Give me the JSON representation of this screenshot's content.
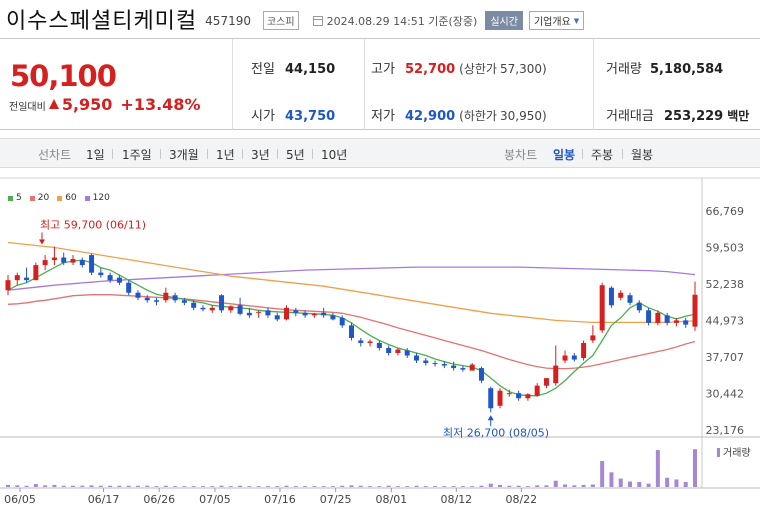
{
  "header": {
    "title": "이수스페셜티케미컬",
    "code": "457190",
    "market": "코스피",
    "datetime": "2024.08.29 14:51 기준(장중)",
    "realtime_label": "실시간",
    "info_label": "기업개요"
  },
  "quote": {
    "price": "50,100",
    "change_label": "전일대비",
    "change": "5,950",
    "change_pct": "+13.48%",
    "prev_close_label": "전일",
    "prev_close": "44,150",
    "high_label": "고가",
    "high": "52,700",
    "upper_limit_label": "(상한가",
    "upper_limit": "57,300)",
    "volume_label": "거래량",
    "volume": "5,180,584",
    "open_label": "시가",
    "open": "43,750",
    "low_label": "저가",
    "low": "42,900",
    "lower_limit_label": "(하한가",
    "lower_limit": "30,950)",
    "amount_label": "거래대금",
    "amount": "253,229",
    "amount_unit": "백만"
  },
  "periods": {
    "line_label": "선차트",
    "line": [
      "1일",
      "1주일",
      "3개월",
      "1년",
      "3년",
      "5년",
      "10년"
    ],
    "candle_label": "봉차트",
    "candle": [
      "일봉",
      "주봉",
      "월봉"
    ],
    "active": "일봉"
  },
  "colors": {
    "up": "#d61f1f",
    "down": "#1f56c8",
    "ma5": "#4caf50",
    "ma20": "#e57373",
    "ma60": "#f0a04b",
    "ma120": "#a57ad8",
    "volume": "#a987cf"
  },
  "chart_data": {
    "type": "candlestick",
    "legend": [
      "5",
      "20",
      "60",
      "120"
    ],
    "y_ticks": [
      "66,769",
      "59,503",
      "52,238",
      "44,973",
      "37,707",
      "30,442",
      "23,176"
    ],
    "ylim": [
      23176,
      66769
    ],
    "x_ticks": [
      "06/05",
      "06/17",
      "06/26",
      "07/05",
      "07/16",
      "07/25",
      "08/01",
      "08/12",
      "08/22"
    ],
    "annotations": {
      "high": "최고 59,700 (06/11)",
      "low": "최저 26,700 (08/05)"
    },
    "volume_label": "거래량",
    "candles": [
      {
        "o": 51000,
        "h": 54000,
        "l": 50000,
        "c": 53000
      },
      {
        "o": 53000,
        "h": 54500,
        "l": 52000,
        "c": 54000
      },
      {
        "o": 53500,
        "h": 55500,
        "l": 52500,
        "c": 53000
      },
      {
        "o": 53000,
        "h": 56500,
        "l": 53000,
        "c": 56000
      },
      {
        "o": 56000,
        "h": 58000,
        "l": 55000,
        "c": 57000
      },
      {
        "o": 57000,
        "h": 59700,
        "l": 56000,
        "c": 57500
      },
      {
        "o": 57500,
        "h": 58500,
        "l": 56000,
        "c": 56500
      },
      {
        "o": 56500,
        "h": 58000,
        "l": 56000,
        "c": 57200
      },
      {
        "o": 57000,
        "h": 57500,
        "l": 55500,
        "c": 56000
      },
      {
        "o": 58000,
        "h": 58300,
        "l": 54000,
        "c": 54500
      },
      {
        "o": 54500,
        "h": 55500,
        "l": 53500,
        "c": 54000
      },
      {
        "o": 54000,
        "h": 54500,
        "l": 52500,
        "c": 53000
      },
      {
        "o": 53500,
        "h": 54000,
        "l": 52000,
        "c": 52500
      },
      {
        "o": 52500,
        "h": 53000,
        "l": 50000,
        "c": 50500
      },
      {
        "o": 50500,
        "h": 51000,
        "l": 49000,
        "c": 49500
      },
      {
        "o": 49500,
        "h": 50000,
        "l": 48500,
        "c": 49000
      },
      {
        "o": 49000,
        "h": 49500,
        "l": 48000,
        "c": 48700
      },
      {
        "o": 49000,
        "h": 51500,
        "l": 48500,
        "c": 50500
      },
      {
        "o": 50000,
        "h": 50500,
        "l": 48500,
        "c": 49000
      },
      {
        "o": 49000,
        "h": 49500,
        "l": 48000,
        "c": 48500
      },
      {
        "o": 48500,
        "h": 49000,
        "l": 47000,
        "c": 47500
      },
      {
        "o": 47500,
        "h": 48000,
        "l": 46800,
        "c": 47200
      },
      {
        "o": 47000,
        "h": 48000,
        "l": 46500,
        "c": 47500
      },
      {
        "o": 50000,
        "h": 50200,
        "l": 46500,
        "c": 47000
      },
      {
        "o": 47000,
        "h": 48000,
        "l": 46500,
        "c": 47800
      },
      {
        "o": 48000,
        "h": 49500,
        "l": 46000,
        "c": 46300
      },
      {
        "o": 46500,
        "h": 47500,
        "l": 45500,
        "c": 46000
      },
      {
        "o": 46500,
        "h": 47000,
        "l": 45500,
        "c": 46700
      },
      {
        "o": 47000,
        "h": 47500,
        "l": 45500,
        "c": 46000
      },
      {
        "o": 46000,
        "h": 46500,
        "l": 44800,
        "c": 45200
      },
      {
        "o": 45200,
        "h": 48000,
        "l": 45000,
        "c": 47500
      },
      {
        "o": 47000,
        "h": 47500,
        "l": 45800,
        "c": 46500
      },
      {
        "o": 46500,
        "h": 47000,
        "l": 45500,
        "c": 46000
      },
      {
        "o": 46000,
        "h": 46500,
        "l": 45500,
        "c": 46300
      },
      {
        "o": 46500,
        "h": 47500,
        "l": 45500,
        "c": 46000
      },
      {
        "o": 46000,
        "h": 46500,
        "l": 45000,
        "c": 45200
      },
      {
        "o": 45500,
        "h": 46000,
        "l": 43500,
        "c": 44000
      },
      {
        "o": 44000,
        "h": 44500,
        "l": 41000,
        "c": 41500
      },
      {
        "o": 41000,
        "h": 41500,
        "l": 39800,
        "c": 40500
      },
      {
        "o": 40500,
        "h": 41200,
        "l": 39800,
        "c": 40800
      },
      {
        "o": 40500,
        "h": 41000,
        "l": 39000,
        "c": 39500
      },
      {
        "o": 39500,
        "h": 40000,
        "l": 38000,
        "c": 38500
      },
      {
        "o": 38500,
        "h": 39500,
        "l": 38000,
        "c": 39200
      },
      {
        "o": 39000,
        "h": 39500,
        "l": 37500,
        "c": 38000
      },
      {
        "o": 38000,
        "h": 38500,
        "l": 36500,
        "c": 37000
      },
      {
        "o": 37000,
        "h": 37500,
        "l": 36000,
        "c": 36500
      },
      {
        "o": 36500,
        "h": 37000,
        "l": 35800,
        "c": 36300
      },
      {
        "o": 36300,
        "h": 36800,
        "l": 35500,
        "c": 36000
      },
      {
        "o": 36000,
        "h": 36800,
        "l": 35000,
        "c": 35500
      },
      {
        "o": 35500,
        "h": 36000,
        "l": 34800,
        "c": 35200
      },
      {
        "o": 35000,
        "h": 36500,
        "l": 35000,
        "c": 36200
      },
      {
        "o": 35500,
        "h": 35800,
        "l": 32500,
        "c": 33000
      },
      {
        "o": 31500,
        "h": 31800,
        "l": 26700,
        "c": 27500
      },
      {
        "o": 28000,
        "h": 31500,
        "l": 27500,
        "c": 31000
      },
      {
        "o": 30500,
        "h": 31200,
        "l": 29800,
        "c": 30500
      },
      {
        "o": 30500,
        "h": 31000,
        "l": 29000,
        "c": 29500
      },
      {
        "o": 29500,
        "h": 30500,
        "l": 29000,
        "c": 30300
      },
      {
        "o": 30000,
        "h": 32500,
        "l": 29800,
        "c": 32000
      },
      {
        "o": 32000,
        "h": 33500,
        "l": 31500,
        "c": 33500
      },
      {
        "o": 32500,
        "h": 40000,
        "l": 32000,
        "c": 36000
      },
      {
        "o": 37000,
        "h": 39000,
        "l": 36500,
        "c": 38000
      },
      {
        "o": 38000,
        "h": 38500,
        "l": 36800,
        "c": 37200
      },
      {
        "o": 37500,
        "h": 41000,
        "l": 37000,
        "c": 40500
      },
      {
        "o": 41000,
        "h": 44000,
        "l": 40500,
        "c": 42000
      },
      {
        "o": 43000,
        "h": 52500,
        "l": 42500,
        "c": 52000
      },
      {
        "o": 51500,
        "h": 51800,
        "l": 47500,
        "c": 48000
      },
      {
        "o": 49500,
        "h": 51000,
        "l": 49000,
        "c": 50500
      },
      {
        "o": 50000,
        "h": 50500,
        "l": 48000,
        "c": 48500
      },
      {
        "o": 48500,
        "h": 49000,
        "l": 46500,
        "c": 47000
      },
      {
        "o": 47000,
        "h": 47500,
        "l": 44000,
        "c": 44500
      },
      {
        "o": 44500,
        "h": 47000,
        "l": 44000,
        "c": 46500
      },
      {
        "o": 46000,
        "h": 46500,
        "l": 44000,
        "c": 44500
      },
      {
        "o": 44500,
        "h": 45500,
        "l": 43800,
        "c": 45000
      },
      {
        "o": 45000,
        "h": 45500,
        "l": 43500,
        "c": 44150
      },
      {
        "o": 43750,
        "h": 52700,
        "l": 42900,
        "c": 50100
      }
    ],
    "volume": [
      0.05,
      0.04,
      0.03,
      0.07,
      0.04,
      0.05,
      0.03,
      0.03,
      0.03,
      0.04,
      0.03,
      0.03,
      0.03,
      0.03,
      0.03,
      0.03,
      0.02,
      0.03,
      0.02,
      0.02,
      0.02,
      0.02,
      0.02,
      0.03,
      0.02,
      0.03,
      0.02,
      0.02,
      0.02,
      0.02,
      0.03,
      0.02,
      0.02,
      0.02,
      0.02,
      0.02,
      0.03,
      0.04,
      0.03,
      0.02,
      0.02,
      0.03,
      0.02,
      0.02,
      0.03,
      0.02,
      0.02,
      0.02,
      0.02,
      0.02,
      0.02,
      0.03,
      0.08,
      0.05,
      0.03,
      0.03,
      0.02,
      0.04,
      0.04,
      0.15,
      0.06,
      0.04,
      0.05,
      0.06,
      0.62,
      0.35,
      0.2,
      0.13,
      0.12,
      0.08,
      0.88,
      0.22,
      0.18,
      0.12,
      0.9
    ],
    "ma5": [
      51000,
      52000,
      52500,
      53500,
      54500,
      55500,
      56500,
      56800,
      57000,
      56500,
      55500,
      55000,
      54000,
      53000,
      52000,
      51000,
      50200,
      49800,
      49500,
      49200,
      48800,
      48500,
      48000,
      47800,
      47600,
      47500,
      47300,
      47000,
      46800,
      46700,
      46600,
      46500,
      46400,
      46300,
      46200,
      46000,
      45500,
      44500,
      43200,
      42000,
      41000,
      40200,
      39500,
      39000,
      38500,
      38000,
      37300,
      36800,
      36300,
      36000,
      35700,
      35000,
      33500,
      32000,
      30800,
      30200,
      30000,
      30000,
      30500,
      31500,
      33000,
      34800,
      36500,
      38000,
      41000,
      44000,
      45500,
      47500,
      48500,
      47500,
      46800,
      45800,
      45300,
      45800,
      46200
    ],
    "ma20": [
      48200,
      48300,
      48500,
      48800,
      49000,
      49300,
      49600,
      49900,
      50000,
      50100,
      50100,
      50100,
      50000,
      49900,
      49800,
      49700,
      49600,
      49500,
      49400,
      49300,
      49100,
      48900,
      48700,
      48500,
      48300,
      48100,
      47900,
      47700,
      47500,
      47300,
      47100,
      47000,
      46900,
      46800,
      46700,
      46600,
      46400,
      46000,
      45600,
      45100,
      44600,
      44100,
      43500,
      43000,
      42500,
      42000,
      41500,
      41000,
      40500,
      40000,
      39500,
      39000,
      38400,
      37800,
      37200,
      36700,
      36200,
      35800,
      35500,
      35400,
      35400,
      35500,
      35700,
      36000,
      36400,
      36800,
      37200,
      37600,
      38000,
      38400,
      38800,
      39200,
      39700,
      40300,
      40800
    ],
    "ma60": [
      60500,
      60300,
      60100,
      59900,
      59700,
      59500,
      59200,
      58900,
      58600,
      58300,
      58000,
      57700,
      57400,
      57100,
      56800,
      56500,
      56200,
      55900,
      55600,
      55300,
      55000,
      54700,
      54400,
      54100,
      53800,
      53600,
      53400,
      53200,
      53000,
      52800,
      52600,
      52400,
      52200,
      52000,
      51800,
      51500,
      51200,
      50900,
      50600,
      50300,
      50000,
      49700,
      49400,
      49100,
      48800,
      48500,
      48200,
      47900,
      47600,
      47300,
      47000,
      46700,
      46400,
      46200,
      46000,
      45800,
      45600,
      45400,
      45200,
      45000,
      44900,
      44800,
      44700,
      44600,
      44600,
      44600,
      44600,
      44600,
      44600,
      44600,
      44600,
      44600,
      44700,
      44800,
      44900
    ],
    "ma120": [
      51000,
      51200,
      51400,
      51600,
      51800,
      52000,
      52150,
      52300,
      52450,
      52600,
      52750,
      52900,
      53000,
      53100,
      53200,
      53300,
      53400,
      53500,
      53600,
      53700,
      53800,
      53900,
      54000,
      54100,
      54200,
      54300,
      54400,
      54500,
      54600,
      54700,
      54800,
      54900,
      55000,
      55050,
      55100,
      55150,
      55200,
      55250,
      55300,
      55350,
      55400,
      55450,
      55500,
      55550,
      55600,
      55600,
      55600,
      55600,
      55600,
      55600,
      55600,
      55600,
      55600,
      55600,
      55600,
      55600,
      55550,
      55500,
      55450,
      55400,
      55350,
      55300,
      55250,
      55200,
      55150,
      55100,
      55050,
      55000,
      54950,
      54900,
      54800,
      54700,
      54500,
      54300,
      54100
    ]
  }
}
